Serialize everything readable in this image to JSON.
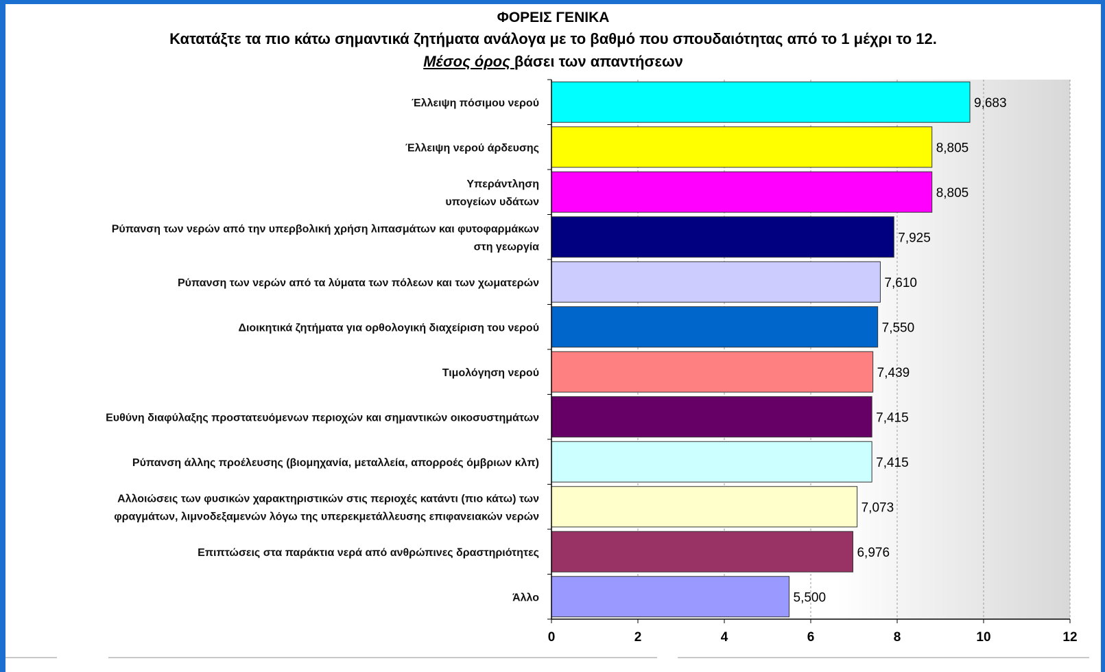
{
  "header": {
    "title": "ΦΟΡΕΙΣ ΓΕΝΙΚΑ",
    "subtitle": "Κατατάξτε τα πιο κάτω σημαντικά ζητήματα ανάλογα με το βαθμό που σπουδαιότητας από το 1 μέχρι το 12.",
    "note_emphasis": "Μέσος όρος ",
    "note_rest": "βάσει των απαντήσεων"
  },
  "chart_data": {
    "type": "bar",
    "orientation": "horizontal",
    "categories": [
      [
        "Έλλειψη πόσιμου νερού"
      ],
      [
        "Έλλειψη νερού άρδευσης"
      ],
      [
        "Υπεράντληση",
        "υπογείων υδάτων"
      ],
      [
        "Ρύπανση των νερών από την υπερβολική χρήση λιπασμάτων και φυτοφαρμάκων",
        "στη γεωργία"
      ],
      [
        "Ρύπανση των νερών από τα λύματα των πόλεων και των χωματερών"
      ],
      [
        "Διοικητικά ζητήματα για ορθολογική διαχείριση του νερού"
      ],
      [
        "Τιμολόγηση νερού"
      ],
      [
        "Ευθύνη διαφύλαξης προστατευόμενων περιοχών και σημαντικών οικοσυστημάτων"
      ],
      [
        "Ρύπανση άλλης προέλευσης (βιομηχανία, μεταλλεία, απορροές όμβριων κλπ)"
      ],
      [
        "Αλλοιώσεις των φυσικών χαρακτηριστικών στις περιοχές κατάντι (πιο κάτω) των",
        "φραγμάτων, λιμνοδεξαμενών λόγω της υπερεκμετάλλευσης επιφανειακών νερών"
      ],
      [
        "Επιπτώσεις στα παράκτια νερά από ανθρώπινες δραστηριότητες"
      ],
      [
        "Άλλο"
      ]
    ],
    "values": [
      9.683,
      8.805,
      8.805,
      7.925,
      7.61,
      7.55,
      7.439,
      7.415,
      7.415,
      7.073,
      6.976,
      5.5
    ],
    "value_labels": [
      "9,683",
      "8,805",
      "8,805",
      "7,925",
      "7,610",
      "7,550",
      "7,439",
      "7,415",
      "7,415",
      "7,073",
      "6,976",
      "5,500"
    ],
    "colors": [
      "#00ffff",
      "#ffff00",
      "#ff00ff",
      "#000080",
      "#ccccff",
      "#0066cc",
      "#ff8080",
      "#660066",
      "#ccffff",
      "#ffffcc",
      "#993366",
      "#9999ff"
    ],
    "xlim": [
      0,
      12
    ],
    "xticks": [
      0,
      2,
      4,
      6,
      8,
      10,
      12
    ],
    "grid": "vertical dashed"
  }
}
